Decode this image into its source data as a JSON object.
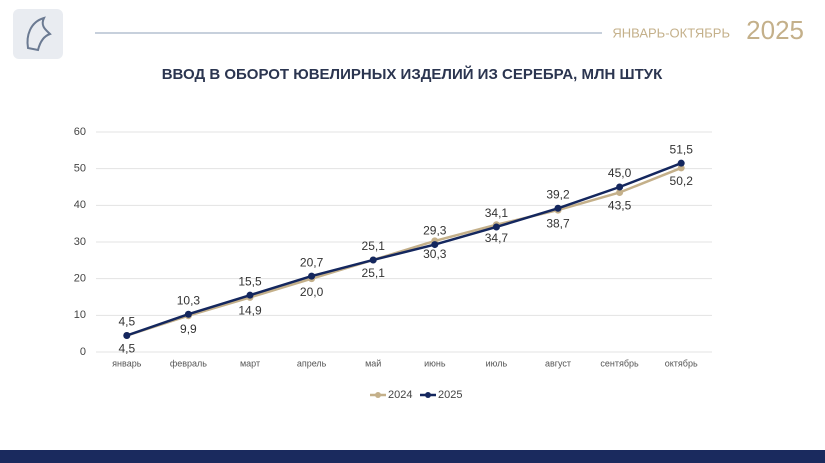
{
  "header": {
    "period": "ЯНВАРЬ-ОКТЯБРЬ",
    "year": "2025"
  },
  "chart_data": {
    "type": "line",
    "title": "ВВОД В ОБОРОТ ЮВЕЛИРНЫХ ИЗДЕЛИЙ ИЗ СЕРЕБРА, МЛН ШТУК",
    "categories": [
      "январь",
      "февраль",
      "март",
      "апрель",
      "май",
      "июнь",
      "июль",
      "август",
      "сентябрь",
      "октябрь"
    ],
    "series": [
      {
        "name": "2024",
        "color": "#c4b08a",
        "values": [
          4.5,
          9.9,
          14.9,
          20.0,
          25.1,
          30.3,
          34.7,
          38.7,
          43.5,
          50.2
        ],
        "value_labels": [
          "4,5",
          "9,9",
          "14,9",
          "20,0",
          "25,1",
          "30,3",
          "34,7",
          "38,7",
          "43,5",
          "50,2"
        ]
      },
      {
        "name": "2025",
        "color": "#14275e",
        "values": [
          4.5,
          10.3,
          15.5,
          20.7,
          25.1,
          29.3,
          34.1,
          39.2,
          45.0,
          51.5
        ],
        "value_labels": [
          "4,5",
          "10,3",
          "15,5",
          "20,7",
          "25,1",
          "29,3",
          "34,1",
          "39,2",
          "45,0",
          "51,5"
        ]
      }
    ],
    "ylim": [
      0,
      60
    ],
    "yticks": [
      0,
      10,
      20,
      30,
      40,
      50,
      60
    ],
    "grid": true,
    "legend": "bottom"
  }
}
